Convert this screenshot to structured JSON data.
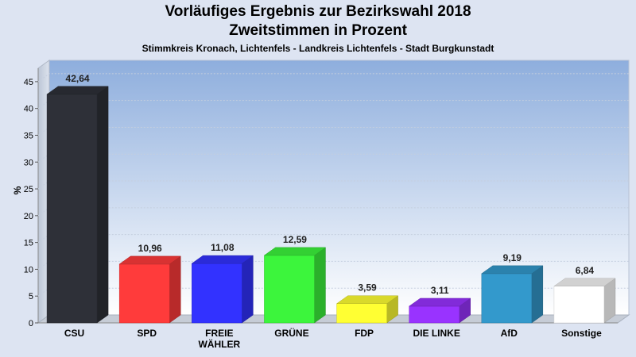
{
  "chart_data": {
    "type": "bar",
    "title": "Vorläufiges Ergebnis zur Bezirkswahl 2018",
    "subtitle": "Zweitstimmen in Prozent",
    "caption": "Stimmkreis Kronach, Lichtenfels - Landkreis Lichtenfels - Stadt Burgkunstadt",
    "ylabel": "%",
    "ylim": [
      0,
      47.5
    ],
    "yticks": [
      0,
      5,
      10,
      15,
      20,
      25,
      30,
      35,
      40,
      45
    ],
    "categories": [
      "CSU",
      "SPD",
      "FREIE WÄHLER",
      "GRÜNE",
      "FDP",
      "DIE LINKE",
      "AfD",
      "Sonstige"
    ],
    "category_lines": [
      [
        "CSU"
      ],
      [
        "SPD"
      ],
      [
        "FREIE",
        "WÄHLER"
      ],
      [
        "GRÜNE"
      ],
      [
        "FDP"
      ],
      [
        "DIE LINKE"
      ],
      [
        "AfD"
      ],
      [
        "Sonstige"
      ]
    ],
    "values": [
      42.64,
      10.96,
      11.08,
      12.59,
      3.59,
      3.11,
      9.19,
      6.84
    ],
    "value_labels": [
      "42,64",
      "10,96",
      "11,08",
      "12,59",
      "3,59",
      "3,11",
      "9,19",
      "6,84"
    ],
    "colors": [
      "#2e3038",
      "#ff3b3b",
      "#3232ff",
      "#3cf53c",
      "#ffff33",
      "#9933ff",
      "#3399cc",
      "#ffffff"
    ],
    "grid": true,
    "legend": "none"
  }
}
